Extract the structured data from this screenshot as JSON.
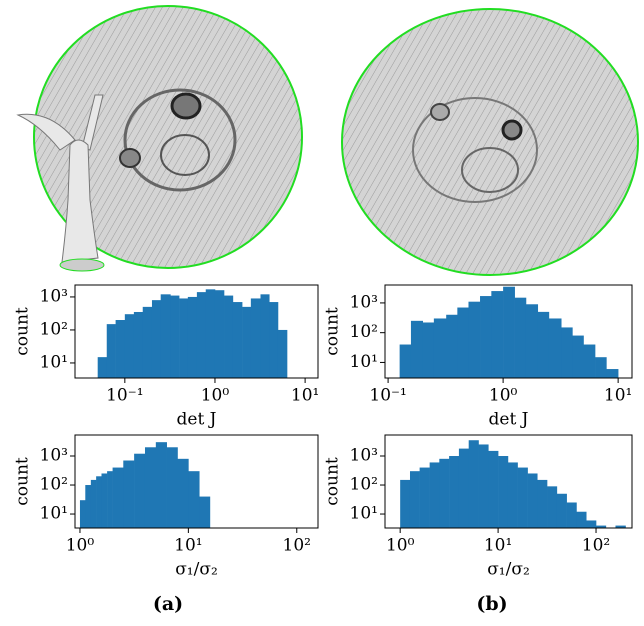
{
  "chart_data": [
    {
      "type": "histogram",
      "ylabel": "count",
      "xlabel": "det J",
      "color": "#1f77b4",
      "log_x": true,
      "log_y": true,
      "bins": [
        0.05,
        0.063,
        0.079,
        0.1,
        0.126,
        0.158,
        0.2,
        0.25,
        0.32,
        0.4,
        0.5,
        0.63,
        0.79,
        1,
        1.26,
        1.58,
        2,
        2.5,
        3.2,
        4,
        5,
        6.3
      ],
      "counts": [
        15,
        150,
        200,
        300,
        350,
        500,
        800,
        1200,
        1100,
        900,
        1000,
        1400,
        1700,
        1600,
        1100,
        700,
        500,
        900,
        1200,
        700,
        100
      ],
      "xlim": [
        0.028,
        13.9
      ],
      "ylim": [
        3.5,
        2300
      ],
      "xticks": [
        {
          "value": 0.1,
          "label": "10⁻¹"
        },
        {
          "value": 1,
          "label": "10⁰"
        },
        {
          "value": 10,
          "label": "10¹"
        }
      ],
      "yticks": [
        {
          "value": 10,
          "label": "10¹"
        },
        {
          "value": 100,
          "label": "10²"
        },
        {
          "value": 1000,
          "label": "10³"
        }
      ]
    },
    {
      "type": "histogram",
      "ylabel": "count",
      "xlabel": "det J",
      "color": "#1f77b4",
      "log_x": true,
      "log_y": true,
      "bins": [
        0.126,
        0.158,
        0.2,
        0.25,
        0.32,
        0.4,
        0.5,
        0.63,
        0.79,
        1,
        1.26,
        1.58,
        2,
        2.5,
        3.2,
        4,
        5,
        6.3,
        7.9,
        10,
        12.6
      ],
      "counts": [
        40,
        250,
        220,
        300,
        400,
        700,
        1100,
        1700,
        2500,
        3500,
        1500,
        900,
        500,
        300,
        150,
        80,
        40,
        15,
        6,
        3
      ],
      "xlim": [
        0.094,
        13.2
      ],
      "ylim": [
        3,
        4000
      ],
      "xticks": [
        {
          "value": 0.1,
          "label": "10⁻¹"
        },
        {
          "value": 1,
          "label": "10⁰"
        },
        {
          "value": 10,
          "label": "10¹"
        }
      ],
      "yticks": [
        {
          "value": 10,
          "label": "10¹"
        },
        {
          "value": 100,
          "label": "10²"
        },
        {
          "value": 1000,
          "label": "10³"
        }
      ]
    },
    {
      "type": "histogram",
      "ylabel": "count",
      "xlabel": "σ₁/σ₂",
      "color": "#1f77b4",
      "log_x": true,
      "log_y": true,
      "bins": [
        1,
        1.12,
        1.26,
        1.41,
        1.58,
        1.78,
        2,
        2.51,
        3.16,
        3.98,
        5.01,
        6.31,
        7.94,
        10,
        12.6,
        15.8
      ],
      "counts": [
        30,
        100,
        150,
        200,
        250,
        300,
        400,
        700,
        1200,
        2000,
        3000,
        2000,
        800,
        300,
        40
      ],
      "xlim": [
        0.9,
        157
      ],
      "ylim": [
        3.3,
        5300
      ],
      "xticks": [
        {
          "value": 1,
          "label": "10⁰"
        },
        {
          "value": 10,
          "label": "10¹"
        },
        {
          "value": 100,
          "label": "10²"
        }
      ],
      "yticks": [
        {
          "value": 10,
          "label": "10¹"
        },
        {
          "value": 100,
          "label": "10²"
        },
        {
          "value": 1000,
          "label": "10³"
        }
      ]
    },
    {
      "type": "histogram",
      "ylabel": "count",
      "xlabel": "σ₁/σ₂",
      "color": "#1f77b4",
      "log_x": true,
      "log_y": true,
      "bins": [
        1,
        1.26,
        1.58,
        2,
        2.51,
        3.16,
        3.98,
        5.01,
        6.31,
        7.94,
        10,
        12.6,
        15.8,
        20,
        25.1,
        31.6,
        39.8,
        50.1,
        63.1,
        79.4,
        100,
        126,
        158,
        200
      ],
      "counts": [
        150,
        300,
        400,
        600,
        800,
        1000,
        1800,
        3500,
        2500,
        1500,
        1000,
        600,
        400,
        250,
        150,
        90,
        50,
        25,
        12,
        6,
        4,
        3,
        4
      ],
      "xlim": [
        0.7,
        233
      ],
      "ylim": [
        3.3,
        5300
      ],
      "xticks": [
        {
          "value": 1,
          "label": "10⁰"
        },
        {
          "value": 10,
          "label": "10¹"
        },
        {
          "value": 100,
          "label": "10²"
        }
      ],
      "yticks": [
        {
          "value": 10,
          "label": "10¹"
        },
        {
          "value": 100,
          "label": "10²"
        },
        {
          "value": 1000,
          "label": "10³"
        }
      ]
    }
  ],
  "captions": [
    "(a)",
    "(b)"
  ]
}
